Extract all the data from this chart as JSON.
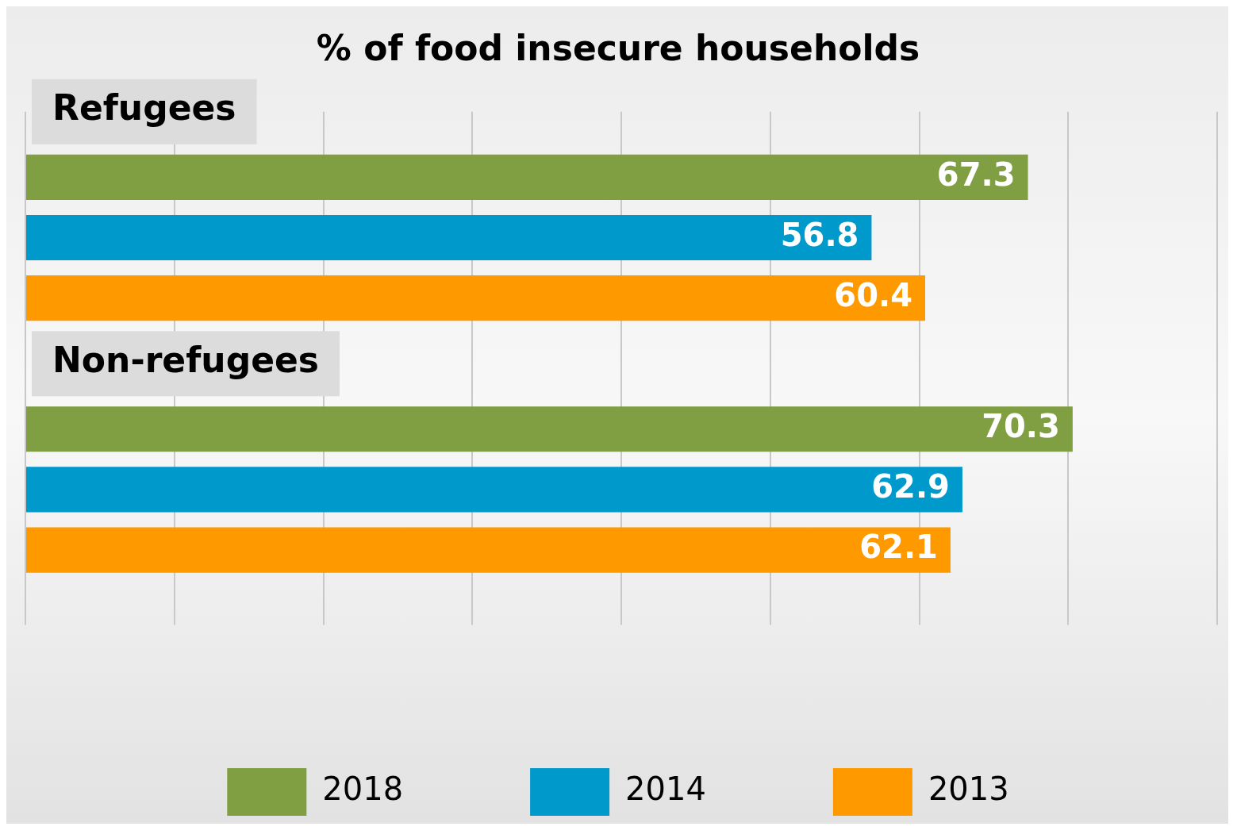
{
  "chart_data": {
    "type": "bar",
    "orientation": "horizontal",
    "title": "% of food insecure households",
    "categories": [
      "Refugees",
      "Non-refugees"
    ],
    "series": [
      {
        "name": "2018",
        "color": "#7f9f42",
        "values": [
          67.3,
          70.3
        ]
      },
      {
        "name": "2014",
        "color": "#0099cc",
        "values": [
          56.8,
          62.9
        ]
      },
      {
        "name": "2013",
        "color": "#ff9900",
        "values": [
          60.4,
          62.1
        ]
      }
    ],
    "xlim": [
      0,
      80
    ],
    "xticks": [
      {
        "value": 0,
        "label": null
      },
      {
        "value": 10,
        "label": null
      },
      {
        "value": 20,
        "label": null
      },
      {
        "value": 30,
        "label": null
      },
      {
        "value": 40,
        "label": null
      },
      {
        "value": 50,
        "label": null
      },
      {
        "value": 60,
        "label": null
      },
      {
        "value": 70,
        "label": null
      },
      {
        "value": 80,
        "label": null
      }
    ],
    "grid": "x",
    "legend": "bottom",
    "data_labels": true
  }
}
